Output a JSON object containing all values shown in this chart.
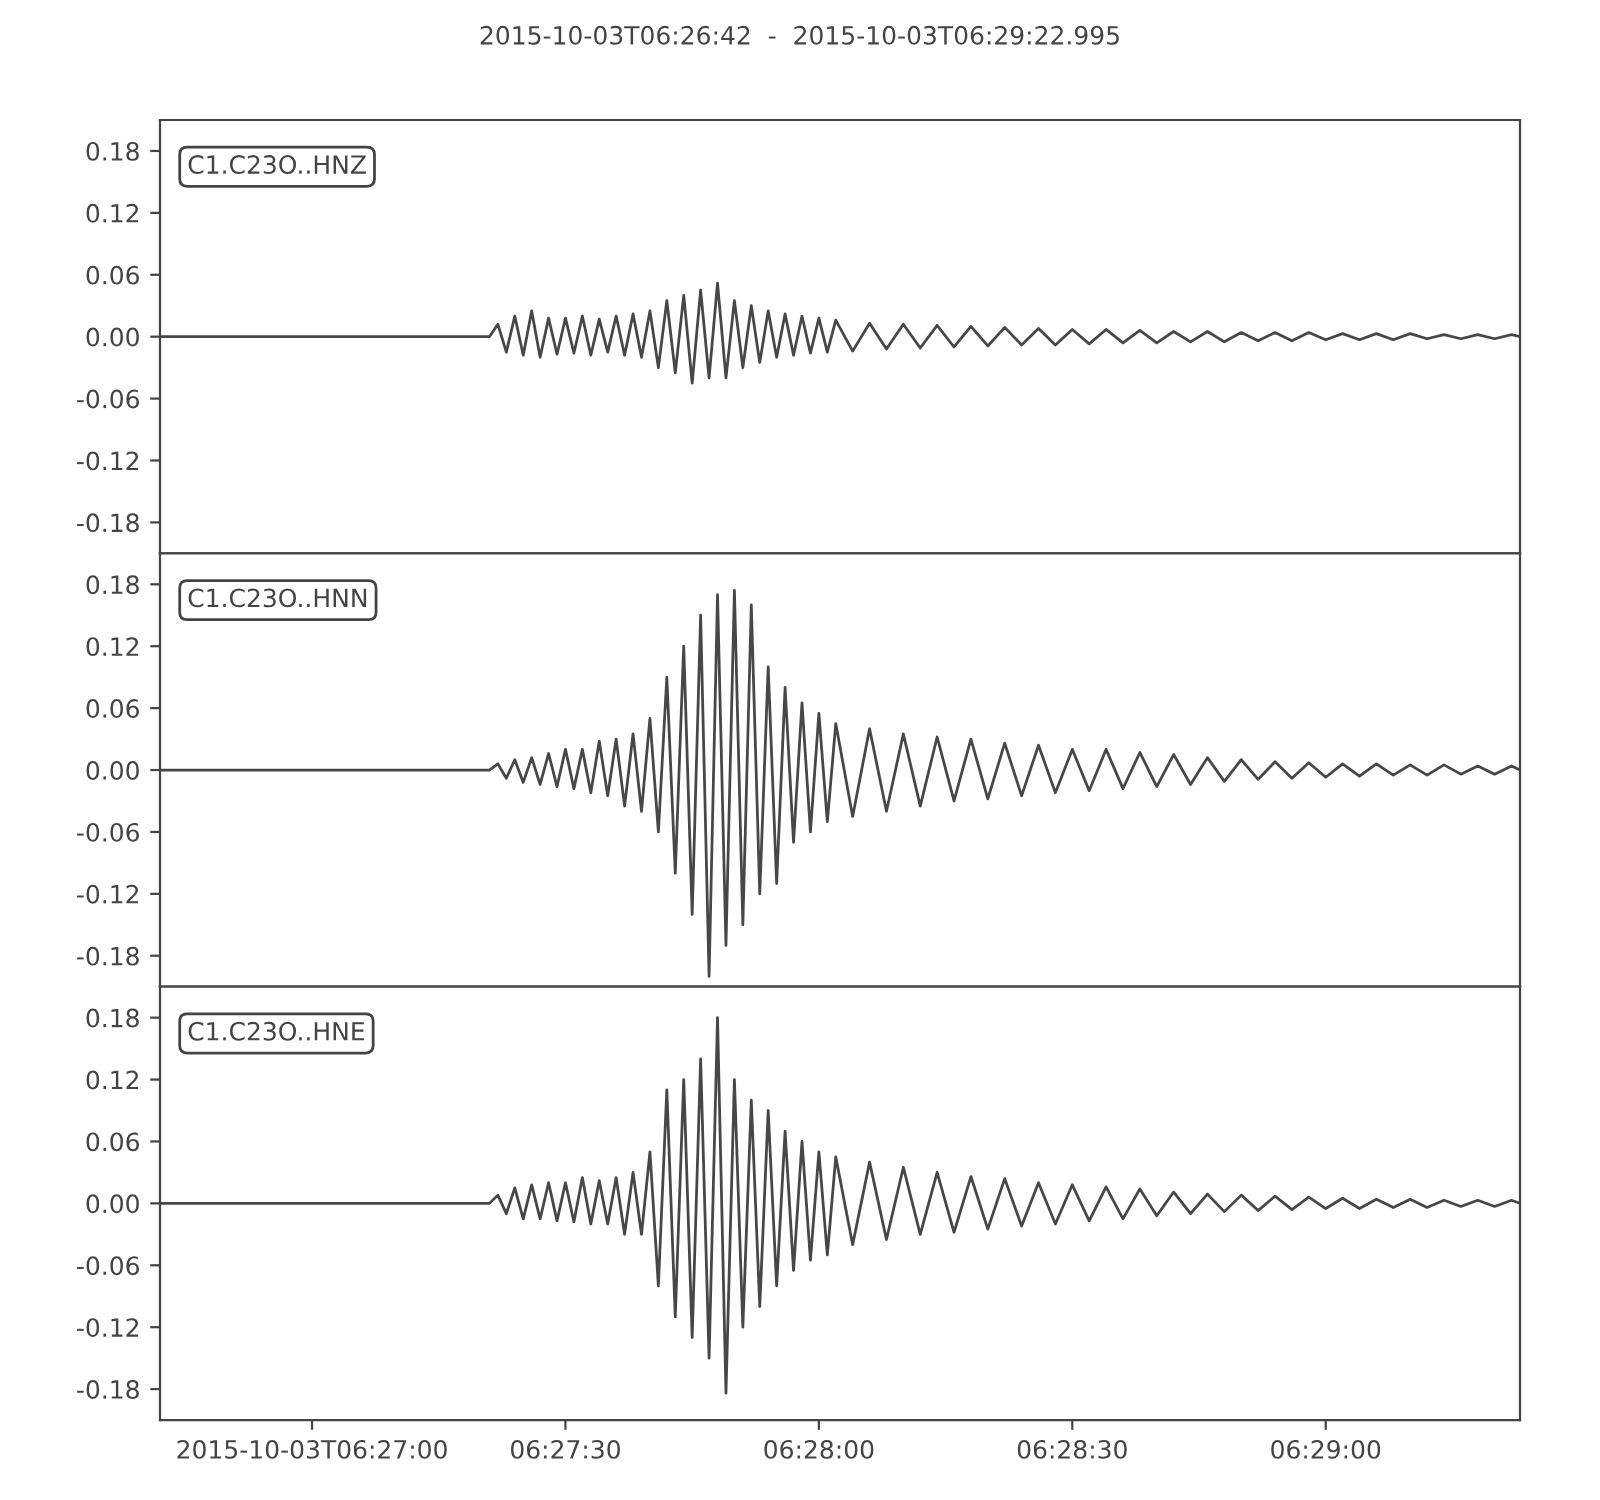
{
  "chart_data": [
    {
      "type": "line",
      "title": "2015-10-03T06:26:42  -  2015-10-03T06:29:22.995",
      "annotations": [
        "C1.C23O..HNZ"
      ],
      "x": [
        "2015-10-03T06:26:42",
        "2015-10-03T06:27:21",
        "2015-10-03T06:27:22",
        "2015-10-03T06:27:23",
        "2015-10-03T06:27:24",
        "2015-10-03T06:27:25",
        "2015-10-03T06:27:26",
        "2015-10-03T06:27:27",
        "2015-10-03T06:27:28",
        "2015-10-03T06:27:29",
        "2015-10-03T06:27:30",
        "2015-10-03T06:27:31",
        "2015-10-03T06:27:32",
        "2015-10-03T06:27:33",
        "2015-10-03T06:27:34",
        "2015-10-03T06:27:35",
        "2015-10-03T06:27:36",
        "2015-10-03T06:27:37",
        "2015-10-03T06:27:38",
        "2015-10-03T06:27:39",
        "2015-10-03T06:27:40",
        "2015-10-03T06:27:41",
        "2015-10-03T06:27:42",
        "2015-10-03T06:27:43",
        "2015-10-03T06:27:44",
        "2015-10-03T06:27:45",
        "2015-10-03T06:27:46",
        "2015-10-03T06:27:47",
        "2015-10-03T06:27:48",
        "2015-10-03T06:27:49",
        "2015-10-03T06:27:50",
        "2015-10-03T06:27:51",
        "2015-10-03T06:27:52",
        "2015-10-03T06:27:53",
        "2015-10-03T06:27:54",
        "2015-10-03T06:27:55",
        "2015-10-03T06:27:56",
        "2015-10-03T06:27:57",
        "2015-10-03T06:27:58",
        "2015-10-03T06:27:59",
        "2015-10-03T06:28:00",
        "2015-10-03T06:28:01",
        "2015-10-03T06:28:02",
        "2015-10-03T06:28:04",
        "2015-10-03T06:28:06",
        "2015-10-03T06:28:08",
        "2015-10-03T06:28:10",
        "2015-10-03T06:28:12",
        "2015-10-03T06:28:14",
        "2015-10-03T06:28:16",
        "2015-10-03T06:28:18",
        "2015-10-03T06:28:20",
        "2015-10-03T06:28:22",
        "2015-10-03T06:28:24",
        "2015-10-03T06:28:26",
        "2015-10-03T06:28:28",
        "2015-10-03T06:28:30",
        "2015-10-03T06:28:32",
        "2015-10-03T06:28:34",
        "2015-10-03T06:28:36",
        "2015-10-03T06:28:38",
        "2015-10-03T06:28:40",
        "2015-10-03T06:28:42",
        "2015-10-03T06:28:44",
        "2015-10-03T06:28:46",
        "2015-10-03T06:28:48",
        "2015-10-03T06:28:50",
        "2015-10-03T06:28:52",
        "2015-10-03T06:28:54",
        "2015-10-03T06:28:56",
        "2015-10-03T06:28:58",
        "2015-10-03T06:29:00",
        "2015-10-03T06:29:02",
        "2015-10-03T06:29:04",
        "2015-10-03T06:29:06",
        "2015-10-03T06:29:08",
        "2015-10-03T06:29:10",
        "2015-10-03T06:29:12",
        "2015-10-03T06:29:14",
        "2015-10-03T06:29:16",
        "2015-10-03T06:29:18",
        "2015-10-03T06:29:20",
        "2015-10-03T06:29:22",
        "2015-10-03T06:29:23"
      ],
      "series": [
        {
          "color": "#474747",
          "values": [
            0,
            0,
            0.012,
            -0.015,
            0.02,
            -0.018,
            0.025,
            -0.02,
            0.018,
            -0.017,
            0.018,
            -0.016,
            0.02,
            -0.018,
            0.017,
            -0.015,
            0.02,
            -0.018,
            0.022,
            -0.02,
            0.025,
            -0.03,
            0.035,
            -0.035,
            0.04,
            -0.045,
            0.045,
            -0.04,
            0.052,
            -0.04,
            0.035,
            -0.03,
            0.03,
            -0.025,
            0.025,
            -0.02,
            0.022,
            -0.018,
            0.02,
            -0.016,
            0.018,
            -0.015,
            0.016,
            -0.014,
            0.013,
            -0.012,
            0.012,
            -0.011,
            0.011,
            -0.01,
            0.01,
            -0.009,
            0.009,
            -0.008,
            0.008,
            -0.008,
            0.007,
            -0.007,
            0.007,
            -0.006,
            0.006,
            -0.006,
            0.005,
            -0.005,
            0.005,
            -0.005,
            0.004,
            -0.004,
            0.004,
            -0.004,
            0.004,
            -0.003,
            0.003,
            -0.003,
            0.003,
            -0.003,
            0.003,
            -0.002,
            0.002,
            -0.002,
            0.002,
            -0.002,
            0.002,
            0
          ]
        }
      ],
      "xlim": [
        "2015-10-03T06:26:42",
        "2015-10-03T06:29:23"
      ],
      "ylim": [
        -0.21,
        0.21
      ],
      "yticks": [
        {
          "value": -0.18,
          "label": "-0.18"
        },
        {
          "value": -0.12,
          "label": "-0.12"
        },
        {
          "value": -0.06,
          "label": "-0.06"
        },
        {
          "value": 0,
          "label": "0.00"
        },
        {
          "value": 0.06,
          "label": "0.06"
        },
        {
          "value": 0.12,
          "label": "0.12"
        },
        {
          "value": 0.18,
          "label": "0.18"
        }
      ],
      "tick_labels": "y",
      "line_style": "solid"
    },
    {
      "type": "line",
      "annotations": [
        "C1.C23O..HNN"
      ],
      "x": [
        "2015-10-03T06:26:42",
        "2015-10-03T06:27:21",
        "2015-10-03T06:27:22",
        "2015-10-03T06:27:23",
        "2015-10-03T06:27:24",
        "2015-10-03T06:27:25",
        "2015-10-03T06:27:26",
        "2015-10-03T06:27:27",
        "2015-10-03T06:27:28",
        "2015-10-03T06:27:29",
        "2015-10-03T06:27:30",
        "2015-10-03T06:27:31",
        "2015-10-03T06:27:32",
        "2015-10-03T06:27:33",
        "2015-10-03T06:27:34",
        "2015-10-03T06:27:35",
        "2015-10-03T06:27:36",
        "2015-10-03T06:27:37",
        "2015-10-03T06:27:38",
        "2015-10-03T06:27:39",
        "2015-10-03T06:27:40",
        "2015-10-03T06:27:41",
        "2015-10-03T06:27:42",
        "2015-10-03T06:27:43",
        "2015-10-03T06:27:44",
        "2015-10-03T06:27:45",
        "2015-10-03T06:27:46",
        "2015-10-03T06:27:47",
        "2015-10-03T06:27:48",
        "2015-10-03T06:27:49",
        "2015-10-03T06:27:50",
        "2015-10-03T06:27:51",
        "2015-10-03T06:27:52",
        "2015-10-03T06:27:53",
        "2015-10-03T06:27:54",
        "2015-10-03T06:27:55",
        "2015-10-03T06:27:56",
        "2015-10-03T06:27:57",
        "2015-10-03T06:27:58",
        "2015-10-03T06:27:59",
        "2015-10-03T06:28:00",
        "2015-10-03T06:28:01",
        "2015-10-03T06:28:02",
        "2015-10-03T06:28:04",
        "2015-10-03T06:28:06",
        "2015-10-03T06:28:08",
        "2015-10-03T06:28:10",
        "2015-10-03T06:28:12",
        "2015-10-03T06:28:14",
        "2015-10-03T06:28:16",
        "2015-10-03T06:28:18",
        "2015-10-03T06:28:20",
        "2015-10-03T06:28:22",
        "2015-10-03T06:28:24",
        "2015-10-03T06:28:26",
        "2015-10-03T06:28:28",
        "2015-10-03T06:28:30",
        "2015-10-03T06:28:32",
        "2015-10-03T06:28:34",
        "2015-10-03T06:28:36",
        "2015-10-03T06:28:38",
        "2015-10-03T06:28:40",
        "2015-10-03T06:28:42",
        "2015-10-03T06:28:44",
        "2015-10-03T06:28:46",
        "2015-10-03T06:28:48",
        "2015-10-03T06:28:50",
        "2015-10-03T06:28:52",
        "2015-10-03T06:28:54",
        "2015-10-03T06:28:56",
        "2015-10-03T06:28:58",
        "2015-10-03T06:29:00",
        "2015-10-03T06:29:02",
        "2015-10-03T06:29:04",
        "2015-10-03T06:29:06",
        "2015-10-03T06:29:08",
        "2015-10-03T06:29:10",
        "2015-10-03T06:29:12",
        "2015-10-03T06:29:14",
        "2015-10-03T06:29:16",
        "2015-10-03T06:29:18",
        "2015-10-03T06:29:20",
        "2015-10-03T06:29:22",
        "2015-10-03T06:29:23"
      ],
      "series": [
        {
          "color": "#474747",
          "values": [
            0,
            0,
            0.006,
            -0.008,
            0.01,
            -0.012,
            0.012,
            -0.014,
            0.016,
            -0.016,
            0.02,
            -0.018,
            0.02,
            -0.022,
            0.028,
            -0.025,
            0.03,
            -0.035,
            0.035,
            -0.04,
            0.05,
            -0.06,
            0.09,
            -0.1,
            0.12,
            -0.14,
            0.15,
            -0.2,
            0.17,
            -0.17,
            0.174,
            -0.15,
            0.16,
            -0.12,
            0.1,
            -0.11,
            0.08,
            -0.07,
            0.065,
            -0.06,
            0.055,
            -0.05,
            0.045,
            -0.045,
            0.04,
            -0.04,
            0.035,
            -0.035,
            0.032,
            -0.03,
            0.03,
            -0.028,
            0.026,
            -0.025,
            0.024,
            -0.022,
            0.02,
            -0.02,
            0.02,
            -0.018,
            0.017,
            -0.016,
            0.015,
            -0.014,
            0.012,
            -0.011,
            0.01,
            -0.009,
            0.008,
            -0.008,
            0.007,
            -0.007,
            0.006,
            -0.006,
            0.006,
            -0.005,
            0.005,
            -0.005,
            0.005,
            -0.004,
            0.004,
            -0.004,
            0.004,
            0
          ]
        }
      ],
      "xlim": [
        "2015-10-03T06:26:42",
        "2015-10-03T06:29:23"
      ],
      "ylim": [
        -0.21,
        0.21
      ],
      "yticks": [
        {
          "value": -0.18,
          "label": "-0.18"
        },
        {
          "value": -0.12,
          "label": "-0.12"
        },
        {
          "value": -0.06,
          "label": "-0.06"
        },
        {
          "value": 0,
          "label": "0.00"
        },
        {
          "value": 0.06,
          "label": "0.06"
        },
        {
          "value": 0.12,
          "label": "0.12"
        },
        {
          "value": 0.18,
          "label": "0.18"
        }
      ],
      "tick_labels": "y",
      "line_style": "solid"
    },
    {
      "type": "line",
      "annotations": [
        "C1.C23O..HNE"
      ],
      "x": [
        "2015-10-03T06:26:42",
        "2015-10-03T06:27:21",
        "2015-10-03T06:27:22",
        "2015-10-03T06:27:23",
        "2015-10-03T06:27:24",
        "2015-10-03T06:27:25",
        "2015-10-03T06:27:26",
        "2015-10-03T06:27:27",
        "2015-10-03T06:27:28",
        "2015-10-03T06:27:29",
        "2015-10-03T06:27:30",
        "2015-10-03T06:27:31",
        "2015-10-03T06:27:32",
        "2015-10-03T06:27:33",
        "2015-10-03T06:27:34",
        "2015-10-03T06:27:35",
        "2015-10-03T06:27:36",
        "2015-10-03T06:27:37",
        "2015-10-03T06:27:38",
        "2015-10-03T06:27:39",
        "2015-10-03T06:27:40",
        "2015-10-03T06:27:41",
        "2015-10-03T06:27:42",
        "2015-10-03T06:27:43",
        "2015-10-03T06:27:44",
        "2015-10-03T06:27:45",
        "2015-10-03T06:27:46",
        "2015-10-03T06:27:47",
        "2015-10-03T06:27:48",
        "2015-10-03T06:27:49",
        "2015-10-03T06:27:50",
        "2015-10-03T06:27:51",
        "2015-10-03T06:27:52",
        "2015-10-03T06:27:53",
        "2015-10-03T06:27:54",
        "2015-10-03T06:27:55",
        "2015-10-03T06:27:56",
        "2015-10-03T06:27:57",
        "2015-10-03T06:27:58",
        "2015-10-03T06:27:59",
        "2015-10-03T06:28:00",
        "2015-10-03T06:28:01",
        "2015-10-03T06:28:02",
        "2015-10-03T06:28:04",
        "2015-10-03T06:28:06",
        "2015-10-03T06:28:08",
        "2015-10-03T06:28:10",
        "2015-10-03T06:28:12",
        "2015-10-03T06:28:14",
        "2015-10-03T06:28:16",
        "2015-10-03T06:28:18",
        "2015-10-03T06:28:20",
        "2015-10-03T06:28:22",
        "2015-10-03T06:28:24",
        "2015-10-03T06:28:26",
        "2015-10-03T06:28:28",
        "2015-10-03T06:28:30",
        "2015-10-03T06:28:32",
        "2015-10-03T06:28:34",
        "2015-10-03T06:28:36",
        "2015-10-03T06:28:38",
        "2015-10-03T06:28:40",
        "2015-10-03T06:28:42",
        "2015-10-03T06:28:44",
        "2015-10-03T06:28:46",
        "2015-10-03T06:28:48",
        "2015-10-03T06:28:50",
        "2015-10-03T06:28:52",
        "2015-10-03T06:28:54",
        "2015-10-03T06:28:56",
        "2015-10-03T06:28:58",
        "2015-10-03T06:29:00",
        "2015-10-03T06:29:02",
        "2015-10-03T06:29:04",
        "2015-10-03T06:29:06",
        "2015-10-03T06:29:08",
        "2015-10-03T06:29:10",
        "2015-10-03T06:29:12",
        "2015-10-03T06:29:14",
        "2015-10-03T06:29:16",
        "2015-10-03T06:29:18",
        "2015-10-03T06:29:20",
        "2015-10-03T06:29:22",
        "2015-10-03T06:29:23"
      ],
      "series": [
        {
          "color": "#474747",
          "values": [
            0,
            0,
            0.008,
            -0.01,
            0.015,
            -0.015,
            0.018,
            -0.015,
            0.02,
            -0.017,
            0.02,
            -0.018,
            0.025,
            -0.02,
            0.022,
            -0.02,
            0.025,
            -0.03,
            0.03,
            -0.03,
            0.05,
            -0.08,
            0.11,
            -0.11,
            0.12,
            -0.13,
            0.14,
            -0.15,
            0.18,
            -0.184,
            0.12,
            -0.12,
            0.1,
            -0.1,
            0.09,
            -0.08,
            0.07,
            -0.065,
            0.06,
            -0.055,
            0.05,
            -0.05,
            0.045,
            -0.04,
            0.04,
            -0.035,
            0.035,
            -0.03,
            0.03,
            -0.028,
            0.026,
            -0.025,
            0.024,
            -0.022,
            0.02,
            -0.02,
            0.018,
            -0.017,
            0.016,
            -0.015,
            0.014,
            -0.012,
            0.011,
            -0.01,
            0.009,
            -0.008,
            0.008,
            -0.007,
            0.007,
            -0.006,
            0.006,
            -0.005,
            0.005,
            -0.005,
            0.004,
            -0.004,
            0.004,
            -0.004,
            0.003,
            -0.003,
            0.003,
            -0.003,
            0.003,
            0
          ]
        }
      ],
      "xlim": [
        "2015-10-03T06:26:42",
        "2015-10-03T06:29:23"
      ],
      "xticks": [
        {
          "value": "2015-10-03T06:27:00",
          "label": "2015-10-03T06:27:00"
        },
        {
          "value": "2015-10-03T06:27:30",
          "label": "06:27:30"
        },
        {
          "value": "2015-10-03T06:28:00",
          "label": "06:28:00"
        },
        {
          "value": "2015-10-03T06:28:30",
          "label": "06:28:30"
        },
        {
          "value": "2015-10-03T06:29:00",
          "label": "06:29:00"
        }
      ],
      "ylim": [
        -0.21,
        0.21
      ],
      "yticks": [
        {
          "value": -0.18,
          "label": "-0.18"
        },
        {
          "value": -0.12,
          "label": "-0.12"
        },
        {
          "value": -0.06,
          "label": "-0.06"
        },
        {
          "value": 0,
          "label": "0.00"
        },
        {
          "value": 0.06,
          "label": "0.06"
        },
        {
          "value": 0.12,
          "label": "0.12"
        },
        {
          "value": 0.18,
          "label": "0.18"
        }
      ],
      "line_style": "solid"
    }
  ]
}
